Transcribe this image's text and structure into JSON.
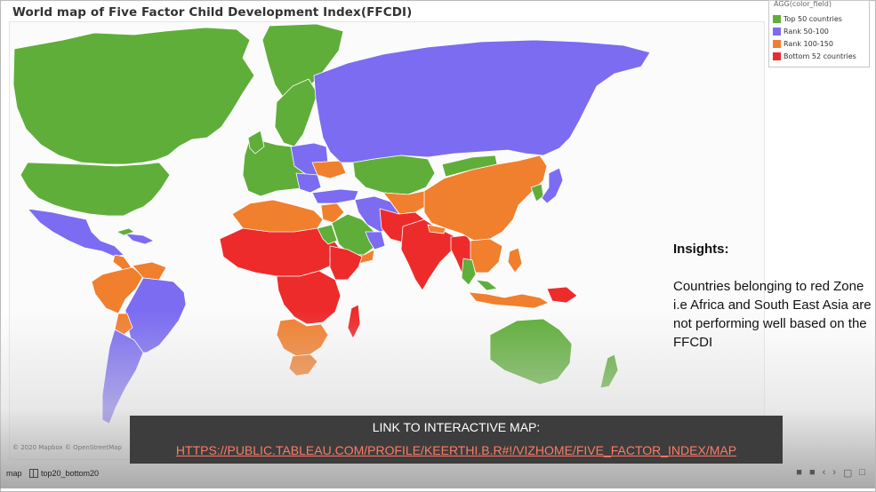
{
  "title": "World map of Five Factor Child Development Index(FFCDI)",
  "legend": {
    "title": "AGG(color_field)",
    "items": [
      {
        "label": "Top 50 countries",
        "color": "#5fae3a"
      },
      {
        "label": "Rank 50-100",
        "color": "#7b6cf2"
      },
      {
        "label": "Rank 100-150",
        "color": "#f07f2e"
      },
      {
        "label": "Bottom 52 countries",
        "color": "#ee2b2b"
      }
    ]
  },
  "colors": {
    "top50": "#5fae3a",
    "rank50_100": "#7b6cf2",
    "rank100_150": "#f07f2e",
    "bottom52": "#ee2b2b",
    "ocean": "#fbfbfb",
    "border": "#ffffff"
  },
  "insights": {
    "heading": "Insights:",
    "body": "Countries belonging to red Zone i.e Africa and South East Asia are not performing well based on the FFCDI"
  },
  "attribution": "© 2020 Mapbox © OpenStreetMap",
  "link": {
    "label": "LINK TO INTERACTIVE MAP:",
    "url": "HTTPS://PUBLIC.TABLEAU.COM/PROFILE/KEERTHI.B.R#!/VIZHOME/FIVE_FACTOR_INDEX/MAP"
  },
  "bottom_bar": {
    "tab_active": "map",
    "tab_other": "top20_bottom20",
    "nav_icons": [
      "previous-icon",
      "stop-icon",
      "back-icon",
      "forward-icon",
      "fullscreen-icon",
      "expand-icon"
    ]
  }
}
